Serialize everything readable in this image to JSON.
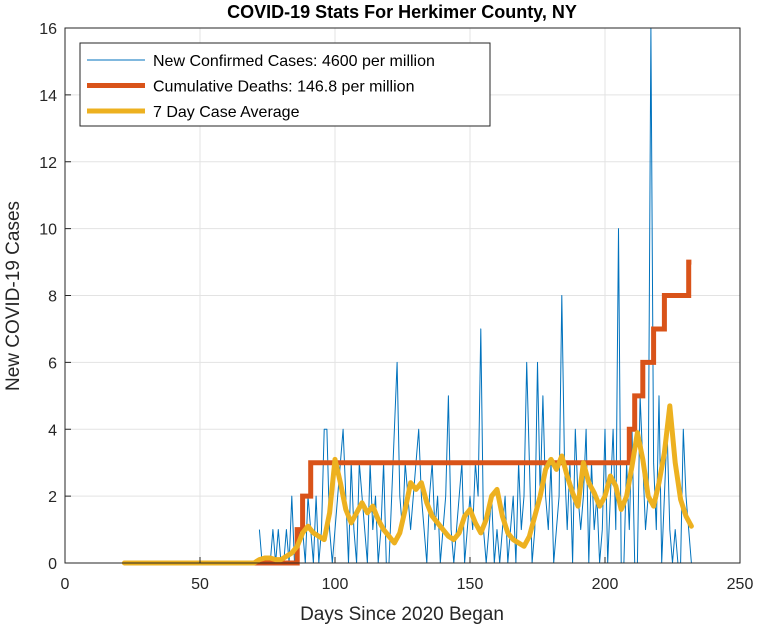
{
  "chart_data": {
    "type": "line",
    "title": "COVID-19 Stats For Herkimer County, NY",
    "xlabel": "Days Since 2020 Began",
    "ylabel": "New COVID-19 Cases",
    "xlim": [
      0,
      250
    ],
    "ylim": [
      0,
      16
    ],
    "xticks": [
      0,
      50,
      100,
      150,
      200,
      250
    ],
    "yticks": [
      0,
      2,
      4,
      6,
      8,
      10,
      12,
      14,
      16
    ],
    "grid": true,
    "legend_position": "top-left",
    "series": [
      {
        "name": "New Confirmed Cases: 4600 per million",
        "color": "#0072BD",
        "width": 1,
        "x": [
          72,
          73,
          74,
          75,
          76,
          77,
          78,
          79,
          80,
          81,
          82,
          83,
          84,
          85,
          86,
          87,
          88,
          89,
          90,
          91,
          92,
          93,
          94,
          95,
          96,
          97,
          98,
          99,
          100,
          101,
          102,
          103,
          104,
          105,
          106,
          107,
          108,
          109,
          110,
          111,
          112,
          113,
          114,
          115,
          116,
          117,
          118,
          119,
          120,
          121,
          122,
          123,
          124,
          125,
          126,
          127,
          128,
          129,
          130,
          131,
          132,
          133,
          134,
          135,
          136,
          137,
          138,
          139,
          140,
          141,
          142,
          143,
          144,
          145,
          146,
          147,
          148,
          149,
          150,
          151,
          152,
          153,
          154,
          155,
          156,
          157,
          158,
          159,
          160,
          161,
          162,
          163,
          164,
          165,
          166,
          167,
          168,
          169,
          170,
          171,
          172,
          173,
          174,
          175,
          176,
          177,
          178,
          179,
          180,
          181,
          182,
          183,
          184,
          185,
          186,
          187,
          188,
          189,
          190,
          191,
          192,
          193,
          194,
          195,
          196,
          197,
          198,
          199,
          200,
          201,
          202,
          203,
          204,
          205,
          206,
          207,
          208,
          209,
          210,
          211,
          212,
          213,
          214,
          215,
          216,
          217,
          218,
          219,
          220,
          221,
          222,
          223,
          224,
          225,
          226,
          227,
          228,
          229,
          230,
          231,
          232
        ],
        "y": [
          1,
          0,
          0,
          0,
          0,
          1,
          0,
          1,
          0,
          0,
          1,
          0,
          2,
          0,
          0,
          1,
          1,
          0,
          2,
          1,
          0,
          2,
          0,
          1,
          4,
          4,
          1,
          0,
          1,
          2,
          3,
          4,
          2,
          0,
          3,
          1,
          0,
          3,
          2,
          1,
          0,
          3,
          1,
          2,
          0,
          1,
          3,
          0,
          0,
          2,
          4,
          6,
          2,
          1,
          3,
          2,
          1,
          2,
          3,
          4,
          2,
          1,
          0,
          2,
          3,
          1,
          2,
          0,
          1,
          2,
          5,
          1,
          0,
          1,
          2,
          3,
          0,
          1,
          2,
          1,
          3,
          2,
          7,
          1,
          0,
          1,
          2,
          0,
          1,
          0,
          1,
          2,
          0,
          1,
          2,
          0,
          3,
          1,
          2,
          6,
          3,
          0,
          1,
          6,
          2,
          5,
          2,
          1,
          3,
          0,
          1,
          2,
          8,
          3,
          1,
          3,
          0,
          4,
          2,
          1,
          2,
          4,
          0,
          3,
          1,
          2,
          0,
          1,
          4,
          0,
          2,
          4,
          1,
          10,
          0,
          0,
          3,
          1,
          4,
          0,
          0,
          5,
          3,
          1,
          2,
          16,
          3,
          1,
          5,
          0,
          2,
          4,
          1,
          0,
          1,
          0,
          0,
          4,
          2,
          1,
          0
        ],
        "x_end": 232
      },
      {
        "name": "Cumulative Deaths: 146.8 per million",
        "color": "#D95319",
        "width": 5,
        "steps": [
          [
            22,
            0
          ],
          [
            86,
            0
          ],
          [
            86,
            1
          ],
          [
            88,
            1
          ],
          [
            88,
            2
          ],
          [
            91,
            2
          ],
          [
            91,
            3
          ],
          [
            209,
            3
          ],
          [
            209,
            4
          ],
          [
            211,
            4
          ],
          [
            211,
            5
          ],
          [
            214,
            5
          ],
          [
            214,
            6
          ],
          [
            218,
            6
          ],
          [
            218,
            7
          ],
          [
            222,
            7
          ],
          [
            222,
            8
          ],
          [
            228,
            8
          ],
          [
            228,
            8
          ],
          [
            231,
            8
          ],
          [
            231,
            9
          ],
          [
            232,
            9
          ]
        ]
      },
      {
        "name": "7 Day Case Average",
        "color": "#EDB120",
        "width": 5,
        "x": [
          22,
          30,
          40,
          50,
          60,
          70,
          72,
          74,
          76,
          78,
          80,
          82,
          84,
          86,
          88,
          90,
          92,
          94,
          96,
          98,
          100,
          102,
          104,
          106,
          108,
          110,
          112,
          114,
          116,
          118,
          120,
          122,
          124,
          126,
          128,
          130,
          132,
          134,
          136,
          138,
          140,
          142,
          144,
          146,
          148,
          150,
          152,
          154,
          156,
          158,
          160,
          162,
          164,
          166,
          168,
          170,
          172,
          174,
          176,
          178,
          180,
          182,
          184,
          186,
          188,
          190,
          192,
          194,
          196,
          198,
          200,
          202,
          204,
          206,
          208,
          210,
          212,
          214,
          216,
          218,
          220,
          222,
          224,
          226,
          228,
          230,
          232
        ],
        "y": [
          0,
          0,
          0,
          0,
          0,
          0,
          0.1,
          0.15,
          0.15,
          0.1,
          0.1,
          0.2,
          0.3,
          0.5,
          0.9,
          1.1,
          0.9,
          0.8,
          0.7,
          1.5,
          3.1,
          2.4,
          1.6,
          1.2,
          1.5,
          1.8,
          1.5,
          1.7,
          1.3,
          1.0,
          0.8,
          0.6,
          0.9,
          1.6,
          2.4,
          2.2,
          2.4,
          1.8,
          1.4,
          1.2,
          1.0,
          0.8,
          0.7,
          0.9,
          1.4,
          1.6,
          1.2,
          0.9,
          1.3,
          2.0,
          2.2,
          1.4,
          0.9,
          0.7,
          0.6,
          0.5,
          0.8,
          1.4,
          2.0,
          2.8,
          3.1,
          2.8,
          3.2,
          2.6,
          2.1,
          1.7,
          3.0,
          2.4,
          2.1,
          1.7,
          2.0,
          2.6,
          2.3,
          1.6,
          2.0,
          2.9,
          3.9,
          3.1,
          2.0,
          1.7,
          2.4,
          3.3,
          4.7,
          3.0,
          1.9,
          1.4,
          1.1
        ]
      }
    ]
  }
}
